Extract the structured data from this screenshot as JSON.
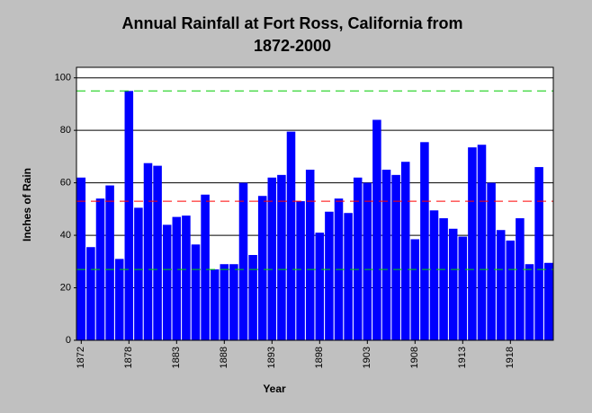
{
  "chart_data": {
    "type": "bar",
    "title": [
      "Annual Rainfall at Fort Ross, California from",
      "1872-2000"
    ],
    "x_label": "Year",
    "y_label": "Inches of Rain",
    "categories": [
      "1872",
      null,
      null,
      null,
      null,
      "1878",
      null,
      null,
      null,
      null,
      "1883",
      null,
      null,
      null,
      null,
      "1888",
      null,
      null,
      null,
      null,
      "1893",
      null,
      null,
      null,
      null,
      "1898",
      null,
      null,
      null,
      null,
      "1903",
      null,
      null,
      null,
      null,
      "1908",
      null,
      null,
      null,
      null,
      "1913",
      null,
      null,
      null,
      null,
      "1918",
      null,
      null,
      null,
      null
    ],
    "values": [
      62,
      35.5,
      54,
      59,
      31,
      95,
      50.5,
      67.5,
      66.5,
      44,
      47,
      47.5,
      36.5,
      55.5,
      27,
      29,
      29,
      60,
      32.5,
      55,
      62,
      63,
      79.5,
      53,
      65,
      41,
      49,
      54,
      48.5,
      62,
      60,
      84,
      65,
      63,
      68,
      38.5,
      75.5,
      49.5,
      46.5,
      42.5,
      39.5,
      73.5,
      74.5,
      60,
      42,
      38,
      46.5,
      29,
      66,
      29.5
    ],
    "color": "#0000ff",
    "ylim": [
      0,
      104
    ],
    "yticks": [
      0,
      20,
      40,
      60,
      80,
      100
    ],
    "grid": true,
    "reference_lines": [
      {
        "value": 95,
        "color": "#00cc00"
      },
      {
        "value": 53,
        "color": "#ff0000"
      },
      {
        "value": 27,
        "color": "#00cc00"
      }
    ]
  }
}
